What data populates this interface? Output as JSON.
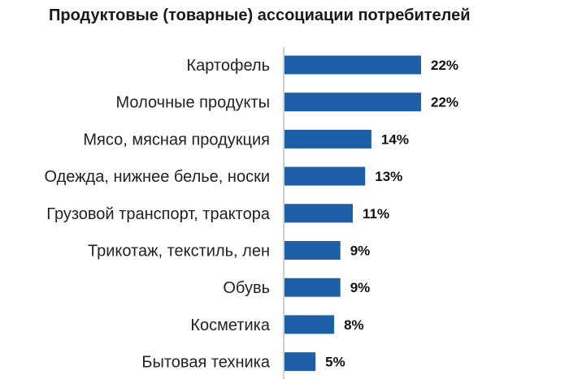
{
  "chart_data": {
    "type": "bar",
    "orientation": "horizontal",
    "title": "Продуктовые (товарные) ассоциации потребителей",
    "categories": [
      "Картофель",
      "Молочные продукты",
      "Мясо, мясная продукция",
      "Одежда, нижнее белье, носки",
      "Грузовой транспорт, трактора",
      "Трикотаж, текстиль, лен",
      "Обувь",
      "Косметика",
      "Бытовая техника"
    ],
    "values": [
      22,
      22,
      14,
      13,
      11,
      9,
      9,
      8,
      5
    ],
    "value_labels": [
      "22%",
      "22%",
      "14%",
      "13%",
      "11%",
      "9%",
      "9%",
      "8%",
      "5%"
    ],
    "unit": "%",
    "bar_color": "#1f5fa8",
    "axis_color": "#bfbfbf",
    "xlim": [
      0,
      22
    ],
    "grid": false,
    "legend": "none"
  }
}
